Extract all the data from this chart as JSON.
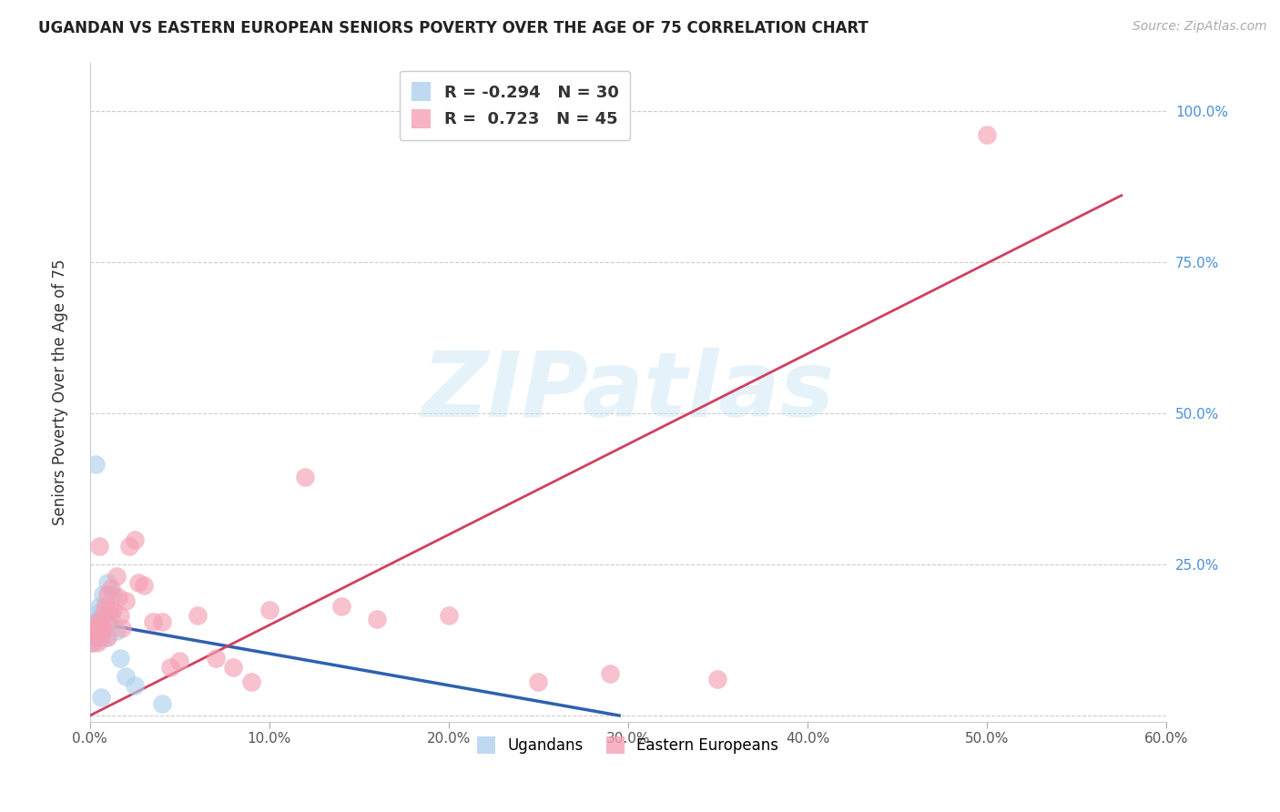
{
  "title": "UGANDAN VS EASTERN EUROPEAN SENIORS POVERTY OVER THE AGE OF 75 CORRELATION CHART",
  "source": "Source: ZipAtlas.com",
  "ylabel": "Seniors Poverty Over the Age of 75",
  "xlim": [
    0.0,
    0.6
  ],
  "ylim": [
    -0.01,
    1.08
  ],
  "xticks": [
    0.0,
    0.1,
    0.2,
    0.3,
    0.4,
    0.5,
    0.6
  ],
  "xticklabels": [
    "0.0%",
    "10.0%",
    "20.0%",
    "30.0%",
    "40.0%",
    "50.0%",
    "60.0%"
  ],
  "yticks": [
    0.0,
    0.25,
    0.5,
    0.75,
    1.0
  ],
  "yticklabels": [
    "",
    "25.0%",
    "50.0%",
    "75.0%",
    "100.0%"
  ],
  "ugandan_R": -0.294,
  "ugandan_N": 30,
  "eastern_R": 0.723,
  "eastern_N": 45,
  "ugandan_color": "#aed0ee",
  "eastern_color": "#f4a0b5",
  "ugandan_line_color": "#3060b0",
  "eastern_line_color": "#d04060",
  "watermark_text": "ZIPatlas",
  "ugandan_x": [
    0.001,
    0.002,
    0.002,
    0.003,
    0.003,
    0.004,
    0.004,
    0.004,
    0.005,
    0.005,
    0.005,
    0.006,
    0.006,
    0.007,
    0.007,
    0.008,
    0.008,
    0.009,
    0.009,
    0.01,
    0.01,
    0.012,
    0.013,
    0.015,
    0.017,
    0.02,
    0.025,
    0.04,
    0.003,
    0.006
  ],
  "ugandan_y": [
    0.12,
    0.155,
    0.13,
    0.14,
    0.15,
    0.16,
    0.145,
    0.135,
    0.17,
    0.18,
    0.125,
    0.15,
    0.165,
    0.14,
    0.2,
    0.175,
    0.15,
    0.145,
    0.13,
    0.155,
    0.22,
    0.165,
    0.2,
    0.14,
    0.095,
    0.065,
    0.05,
    0.02,
    0.415,
    0.03
  ],
  "eastern_x": [
    0.001,
    0.002,
    0.003,
    0.003,
    0.004,
    0.004,
    0.005,
    0.005,
    0.006,
    0.006,
    0.007,
    0.007,
    0.008,
    0.009,
    0.01,
    0.01,
    0.011,
    0.012,
    0.013,
    0.015,
    0.016,
    0.017,
    0.018,
    0.02,
    0.022,
    0.025,
    0.027,
    0.03,
    0.035,
    0.04,
    0.045,
    0.05,
    0.06,
    0.07,
    0.08,
    0.09,
    0.1,
    0.12,
    0.14,
    0.16,
    0.2,
    0.25,
    0.29,
    0.35,
    0.5
  ],
  "eastern_y": [
    0.12,
    0.14,
    0.13,
    0.145,
    0.155,
    0.12,
    0.14,
    0.28,
    0.13,
    0.15,
    0.145,
    0.165,
    0.18,
    0.155,
    0.13,
    0.2,
    0.175,
    0.21,
    0.175,
    0.23,
    0.195,
    0.165,
    0.145,
    0.19,
    0.28,
    0.29,
    0.22,
    0.215,
    0.155,
    0.155,
    0.08,
    0.09,
    0.165,
    0.095,
    0.08,
    0.055,
    0.175,
    0.395,
    0.18,
    0.16,
    0.165,
    0.055,
    0.07,
    0.06,
    0.96
  ],
  "ugandan_line_x0": 0.0,
  "ugandan_line_y0": 0.155,
  "ugandan_line_x1": 0.295,
  "ugandan_line_y1": 0.0,
  "eastern_line_x0": 0.0,
  "eastern_line_y0": 0.0,
  "eastern_line_x1": 0.575,
  "eastern_line_y1": 0.86
}
